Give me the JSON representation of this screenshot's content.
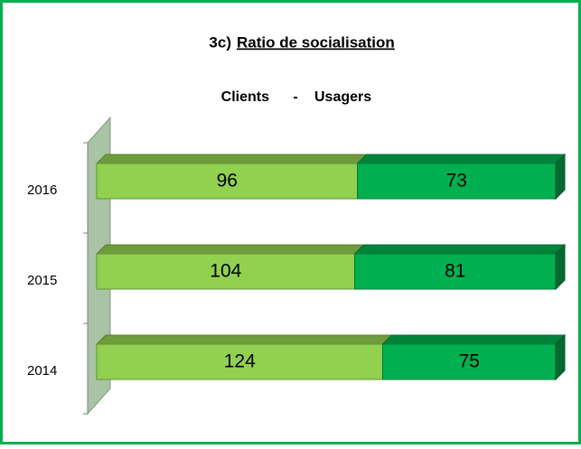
{
  "chart_data": {
    "type": "bar100_horizontal_3d",
    "title_prefix": "3c)",
    "title": "Ratio de socialisation",
    "legend_separator": "-",
    "categories": [
      "2016",
      "2015",
      "2014"
    ],
    "series": [
      {
        "name": "Clients",
        "color": "#92d050",
        "values": [
          96,
          104,
          124
        ]
      },
      {
        "name": "Usagers",
        "color": "#00b050",
        "values": [
          73,
          81,
          75
        ]
      }
    ]
  }
}
